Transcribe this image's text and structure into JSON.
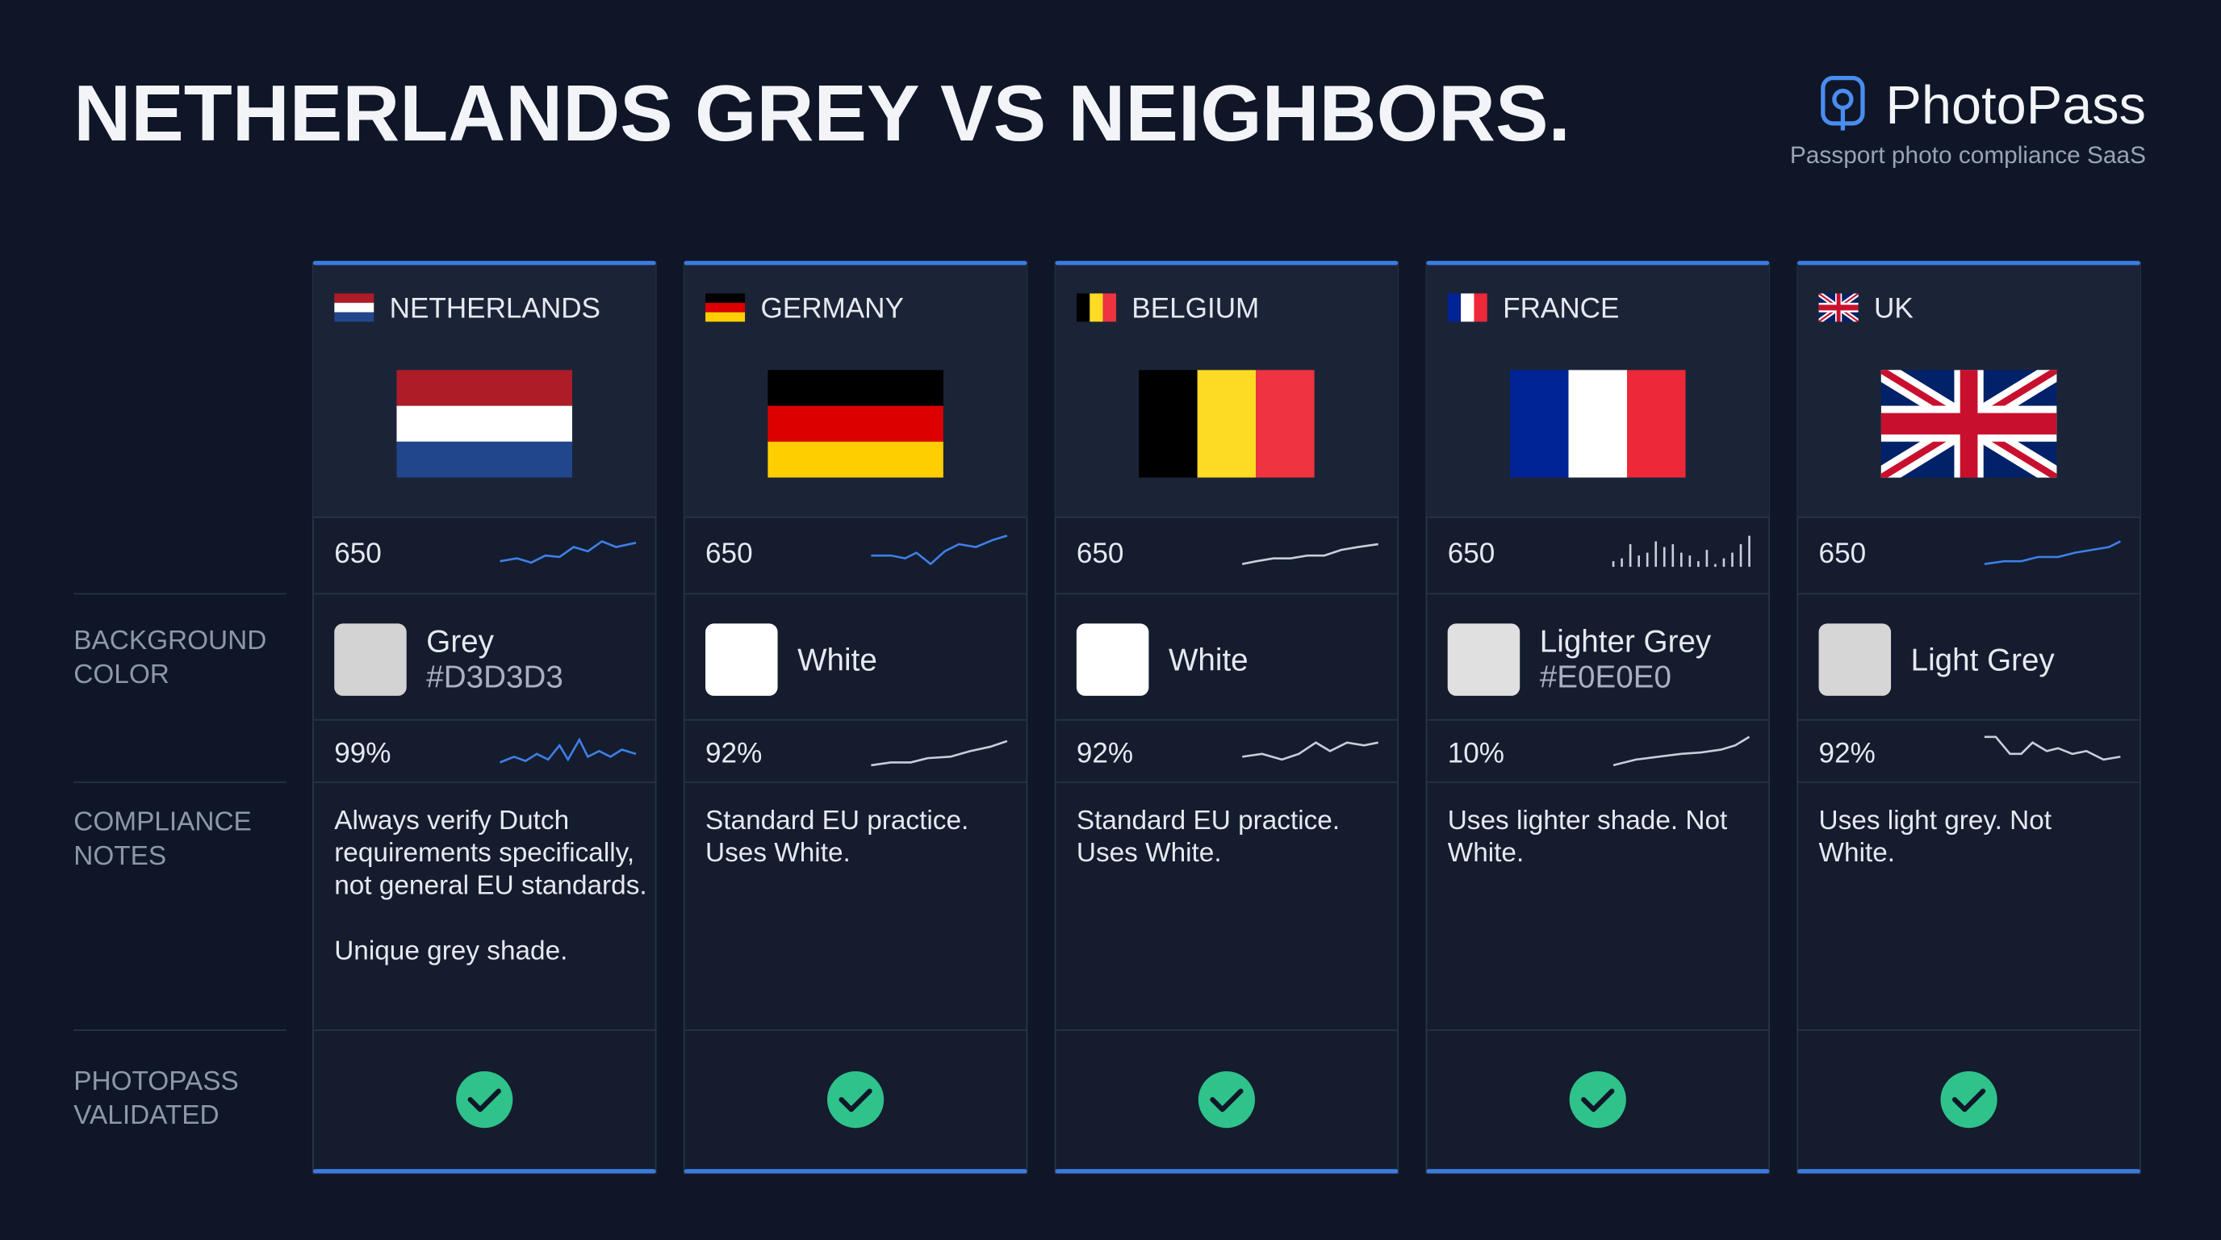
{
  "header": {
    "title": "NETHERLANDS GREY VS NEIGHBORS.",
    "brand": "PhotoPass",
    "tagline": "Passport photo compliance SaaS"
  },
  "row_labels": [
    "BACKGROUND COLOR",
    "COMPLIANCE NOTES",
    "PHOTOPASS VALIDATED"
  ],
  "columns": [
    {
      "country": "NETHERLANDS",
      "score": "650",
      "color_name": "Grey",
      "hex": "#D3D3D3",
      "swatch": "#d3d3d3",
      "percent": "99%",
      "notes": [
        "Always verify Dutch requirements specifically, not general EU standards.",
        "Unique grey shade."
      ]
    },
    {
      "country": "GERMANY",
      "score": "650",
      "color_name": "White",
      "swatch": "#ffffff",
      "percent": "92%",
      "notes": [
        "Standard EU practice. Uses White."
      ]
    },
    {
      "country": "BELGIUM",
      "score": "650",
      "color_name": "White",
      "swatch": "#ffffff",
      "percent": "92%",
      "notes": [
        "Standard EU practice. Uses White."
      ]
    },
    {
      "country": "FRANCE",
      "score": "650",
      "color_name": "Lighter Grey",
      "hex": "#E0E0E0",
      "swatch": "#e0e0e0",
      "percent": "10%",
      "notes": [
        "Uses lighter shade. Not White."
      ]
    },
    {
      "country": "UK",
      "score": "650",
      "color_name": "Light Grey",
      "swatch": "#d6d6d6",
      "percent": "92%",
      "notes": [
        "Uses light grey. Not White."
      ]
    }
  ]
}
